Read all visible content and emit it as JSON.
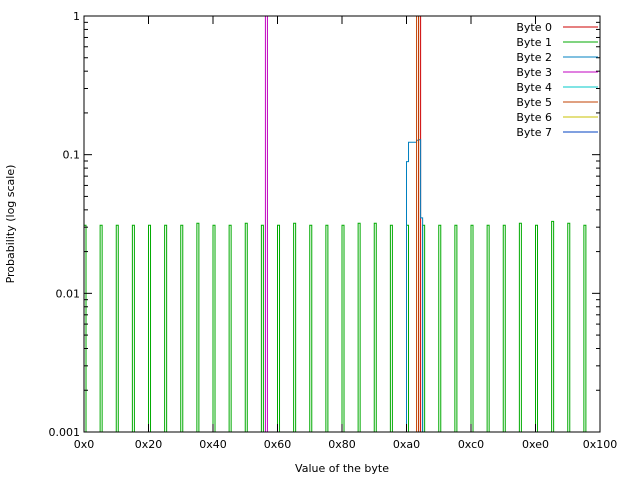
{
  "chart_data": {
    "type": "line",
    "title": "",
    "xlabel": "Value of the byte",
    "ylabel": "Probability (log scale)",
    "xlim": [
      0,
      256
    ],
    "ylim": [
      0.001,
      1
    ],
    "yscale": "log",
    "grid": false,
    "legend_position": "top-right",
    "xticks": [
      {
        "value": 0,
        "label": "0x0"
      },
      {
        "value": 32,
        "label": "0x20"
      },
      {
        "value": 64,
        "label": "0x40"
      },
      {
        "value": 96,
        "label": "0x60"
      },
      {
        "value": 128,
        "label": "0x80"
      },
      {
        "value": 160,
        "label": "0xa0"
      },
      {
        "value": 192,
        "label": "0xc0"
      },
      {
        "value": 224,
        "label": "0xe0"
      },
      {
        "value": 256,
        "label": "0x100"
      }
    ],
    "yticks": [
      {
        "value": 0.001,
        "label": "0.001"
      },
      {
        "value": 0.01,
        "label": "0.01"
      },
      {
        "value": 0.1,
        "label": "0.1"
      },
      {
        "value": 1,
        "label": "1"
      }
    ],
    "series": [
      {
        "name": "Byte 0",
        "color": "#cc0000",
        "spikes": [
          [
            166,
            1
          ]
        ],
        "bands": []
      },
      {
        "name": "Byte 1",
        "color": "#00aa00",
        "spikes": [
          [
            0,
            0.031
          ],
          [
            8,
            0.031
          ],
          [
            16,
            0.031
          ],
          [
            24,
            0.031
          ],
          [
            32,
            0.031
          ],
          [
            40,
            0.031
          ],
          [
            48,
            0.031
          ],
          [
            56,
            0.032
          ],
          [
            64,
            0.031
          ],
          [
            72,
            0.031
          ],
          [
            80,
            0.032
          ],
          [
            88,
            0.031
          ],
          [
            96,
            0.031
          ],
          [
            104,
            0.032
          ],
          [
            112,
            0.031
          ],
          [
            120,
            0.031
          ],
          [
            128,
            0.031
          ],
          [
            136,
            0.032
          ],
          [
            144,
            0.032
          ],
          [
            152,
            0.031
          ],
          [
            160,
            0.031
          ],
          [
            168,
            0.031
          ],
          [
            176,
            0.031
          ],
          [
            184,
            0.031
          ],
          [
            192,
            0.031
          ],
          [
            200,
            0.031
          ],
          [
            208,
            0.031
          ],
          [
            216,
            0.032
          ],
          [
            224,
            0.031
          ],
          [
            232,
            0.033
          ],
          [
            240,
            0.032
          ],
          [
            248,
            0.031
          ]
        ],
        "bands": []
      },
      {
        "name": "Byte 2",
        "color": "#0080c0",
        "spikes": [],
        "bands": [
          [
            160,
            161,
            0.089
          ],
          [
            161,
            165,
            0.123
          ],
          [
            165,
            166,
            0.127
          ],
          [
            166,
            167,
            0.128
          ],
          [
            167,
            168,
            0.035
          ]
        ]
      },
      {
        "name": "Byte 3",
        "color": "#c000c0",
        "spikes": [
          [
            90,
            1
          ]
        ],
        "bands": []
      },
      {
        "name": "Byte 4",
        "color": "#00c8c8",
        "spikes": [],
        "bands": []
      },
      {
        "name": "Byte 5",
        "color": "#c04000",
        "spikes": [
          [
            165,
            1
          ]
        ],
        "bands": []
      },
      {
        "name": "Byte 6",
        "color": "#c8c000",
        "spikes": [],
        "bands": []
      },
      {
        "name": "Byte 7",
        "color": "#0040c0",
        "spikes": [],
        "bands": []
      }
    ]
  }
}
